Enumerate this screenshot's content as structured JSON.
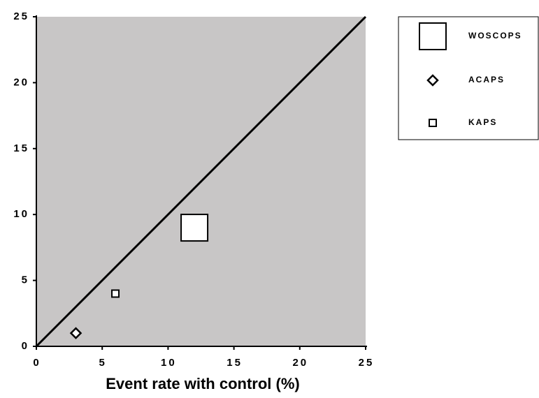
{
  "chart_data": {
    "type": "scatter",
    "xlabel": "Event rate with control (%)",
    "xlim": [
      0,
      25
    ],
    "ylim": [
      0,
      25
    ],
    "xticks": [
      0,
      5,
      10,
      15,
      20,
      25
    ],
    "yticks": [
      0,
      5,
      10,
      15,
      20,
      25
    ],
    "background": "#c8c6c6",
    "identity_line": true,
    "series": [
      {
        "name": "WOSCOPS",
        "color": "#ffffff",
        "marker": "square",
        "marker_size": 38,
        "x": [
          12
        ],
        "values": [
          9
        ]
      },
      {
        "name": "ACAPS",
        "color": "#ffffff",
        "marker": "diamond",
        "marker_size": 14,
        "x": [
          3
        ],
        "values": [
          1
        ]
      },
      {
        "name": "KAPS",
        "color": "#ffffff",
        "marker": "square",
        "marker_size": 10,
        "x": [
          6
        ],
        "values": [
          4
        ]
      }
    ]
  }
}
